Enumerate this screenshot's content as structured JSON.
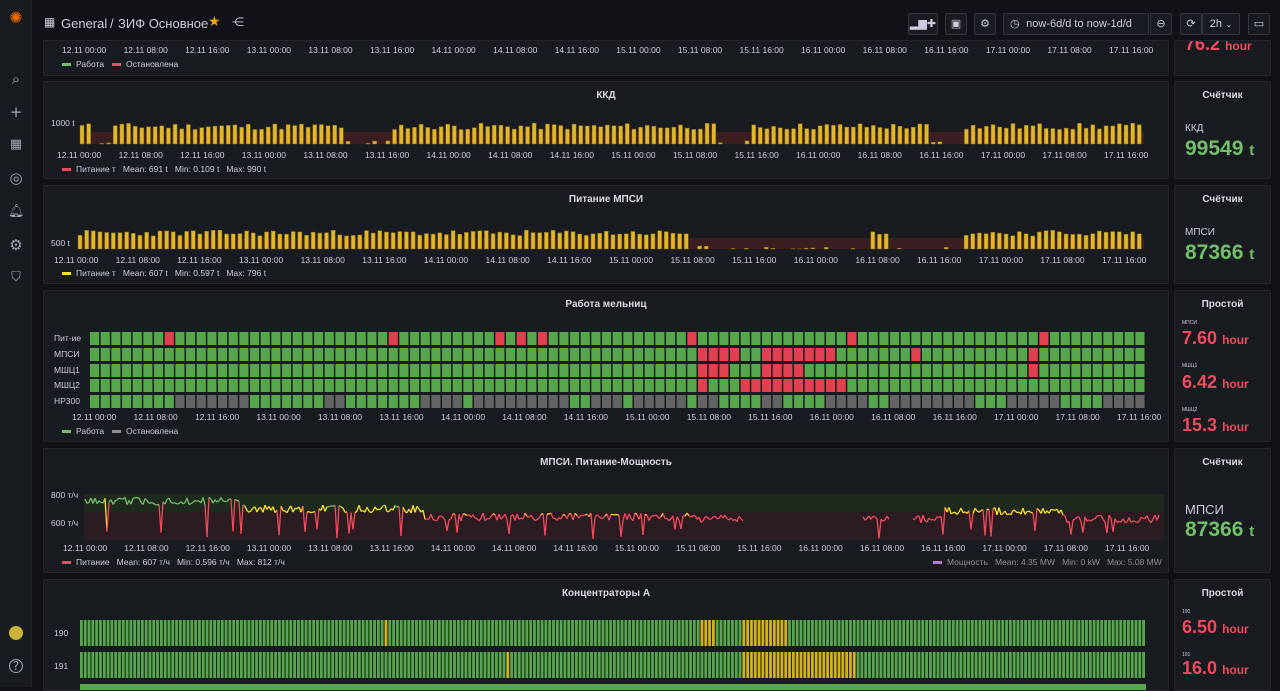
{
  "topbar": {
    "breadcrumb_root": "General",
    "breadcrumb_sep": "/",
    "dashboard_title": "ЗИФ Основное",
    "time_range": "now-6d/d to now-1d/d",
    "refresh": "2h"
  },
  "top_partial": {
    "ticks": [
      "12.11 00:00",
      "12.11 08:00",
      "12.11 16:00",
      "13.11 00:00",
      "13.11 08:00",
      "13.11 16:00",
      "14.11 00:00",
      "14.11 08:00",
      "14.11 16:00",
      "15.11 00:00",
      "15.11 08:00",
      "15.11 16:00",
      "16.11 00:00",
      "16.11 08:00",
      "16.11 16:00",
      "17.11 00:00",
      "17.11 08:00",
      "17.11 16:00"
    ],
    "legend": [
      {
        "label": "Работа",
        "color": "#73bf69"
      },
      {
        "label": "Остановлена",
        "color": "#f2495c"
      }
    ],
    "stat_partial_value": "76.2",
    "stat_partial_unit": "hour"
  },
  "kkd": {
    "title": "ККД",
    "y_label": "1000 t",
    "ticks": [
      "12.11 00:00",
      "12.11 08:00",
      "12.11 16:00",
      "13.11 00:00",
      "13.11 08:00",
      "13.11 16:00",
      "14.11 00:00",
      "14.11 08:00",
      "14.11 16:00",
      "15.11 00:00",
      "15.11 08:00",
      "15.11 16:00",
      "16.11 00:00",
      "16.11 08:00",
      "16.11 16:00",
      "17.11 00:00",
      "17.11 08:00",
      "17.11 16:00"
    ],
    "legend_name": "Питание т",
    "legend_color": "#f2495c",
    "mean": "Mean: 691 t",
    "min": "Min: 0.109 t",
    "max": "Max: 990 t",
    "stat_title": "Счётчик",
    "stat_label": "ККД",
    "stat_value": "99549",
    "stat_unit": "t"
  },
  "mpsi": {
    "title": "Питание МПСИ",
    "y_label": "500 t",
    "ticks": [
      "12.11 00:00",
      "12.11 08:00",
      "12.11 16:00",
      "13.11 00:00",
      "13.11 08:00",
      "13.11 16:00",
      "14.11 00:00",
      "14.11 08:00",
      "14.11 16:00",
      "15.11 00:00",
      "15.11 08:00",
      "15.11 16:00",
      "16.11 00:00",
      "16.11 08:00",
      "16.11 16:00",
      "17.11 00:00",
      "17.11 08:00",
      "17.11 16:00"
    ],
    "legend_name": "Питание т",
    "legend_color": "#fade2a",
    "mean": "Mean: 607 t",
    "min": "Min: 0.597 t",
    "max": "Max: 796 t",
    "stat_title": "Счётчик",
    "stat_label": "МПСИ",
    "stat_value": "87366",
    "stat_unit": "t"
  },
  "mills": {
    "title": "Работа мельниц",
    "rows": [
      "Пит-ие",
      "МПСИ",
      "МШЦ1",
      "МШЦ2",
      "HP300"
    ],
    "ticks": [
      "12.11 00:00",
      "12.11 08:00",
      "12.11 16:00",
      "13.11 00:00",
      "13.11 08:00",
      "13.11 16:00",
      "14.11 00:00",
      "14.11 08:00",
      "14.11 16:00",
      "15.11 00:00",
      "15.11 08:00",
      "15.11 16:00",
      "16.11 00:00",
      "16.11 08:00",
      "16.11 16:00",
      "17.11 00:00",
      "17.11 08:00",
      "17.11 16:00"
    ],
    "legend": [
      {
        "label": "Работа",
        "color": "#73bf69"
      },
      {
        "label": "Остановлена",
        "color": "#8e8e8e"
      }
    ],
    "stat_title": "Простой",
    "stats": [
      {
        "name": "МПСИ",
        "value": "7.60",
        "unit": "hour"
      },
      {
        "name": "МШЦ1",
        "value": "6.42",
        "unit": "hour"
      },
      {
        "name": "МШЦ2",
        "value": "15.3",
        "unit": "hour"
      }
    ]
  },
  "power": {
    "title": "МПСИ. Питание-Мощность",
    "y_labels": [
      "800 т/ч",
      "600 т/ч"
    ],
    "ticks": [
      "12.11 00:00",
      "12.11 08:00",
      "12.11 16:00",
      "13.11 00:00",
      "13.11 08:00",
      "13.11 16:00",
      "14.11 00:00",
      "14.11 08:00",
      "14.11 16:00",
      "15.11 00:00",
      "15.11 08:00",
      "15.11 16:00",
      "16.11 00:00",
      "16.11 08:00",
      "16.11 16:00",
      "17.11 00:00",
      "17.11 08:00",
      "17.11 16:00"
    ],
    "legend_left": {
      "name": "Питание",
      "color": "#f2495c",
      "mean": "Mean: 607 т/ч",
      "min": "Min: 0.596 т/ч",
      "max": "Max: 812 т/ч"
    },
    "legend_right": {
      "name": "Мощность",
      "color": "#b877d9",
      "mean": "Mean: 4.35 MW",
      "min": "Min: 0 kW",
      "max": "Max: 5.08 MW"
    },
    "stat_title": "Счётчик",
    "stat_label": "МПСИ",
    "stat_value": "87366",
    "stat_unit": "t"
  },
  "conc": {
    "title": "Концентраторы А",
    "rows": [
      "190",
      "191"
    ],
    "stat_title": "Простой",
    "stats": [
      {
        "name": "190",
        "value": "6.50",
        "unit": "hour"
      },
      {
        "name": "191",
        "value": "16.0",
        "unit": "hour"
      }
    ]
  }
}
